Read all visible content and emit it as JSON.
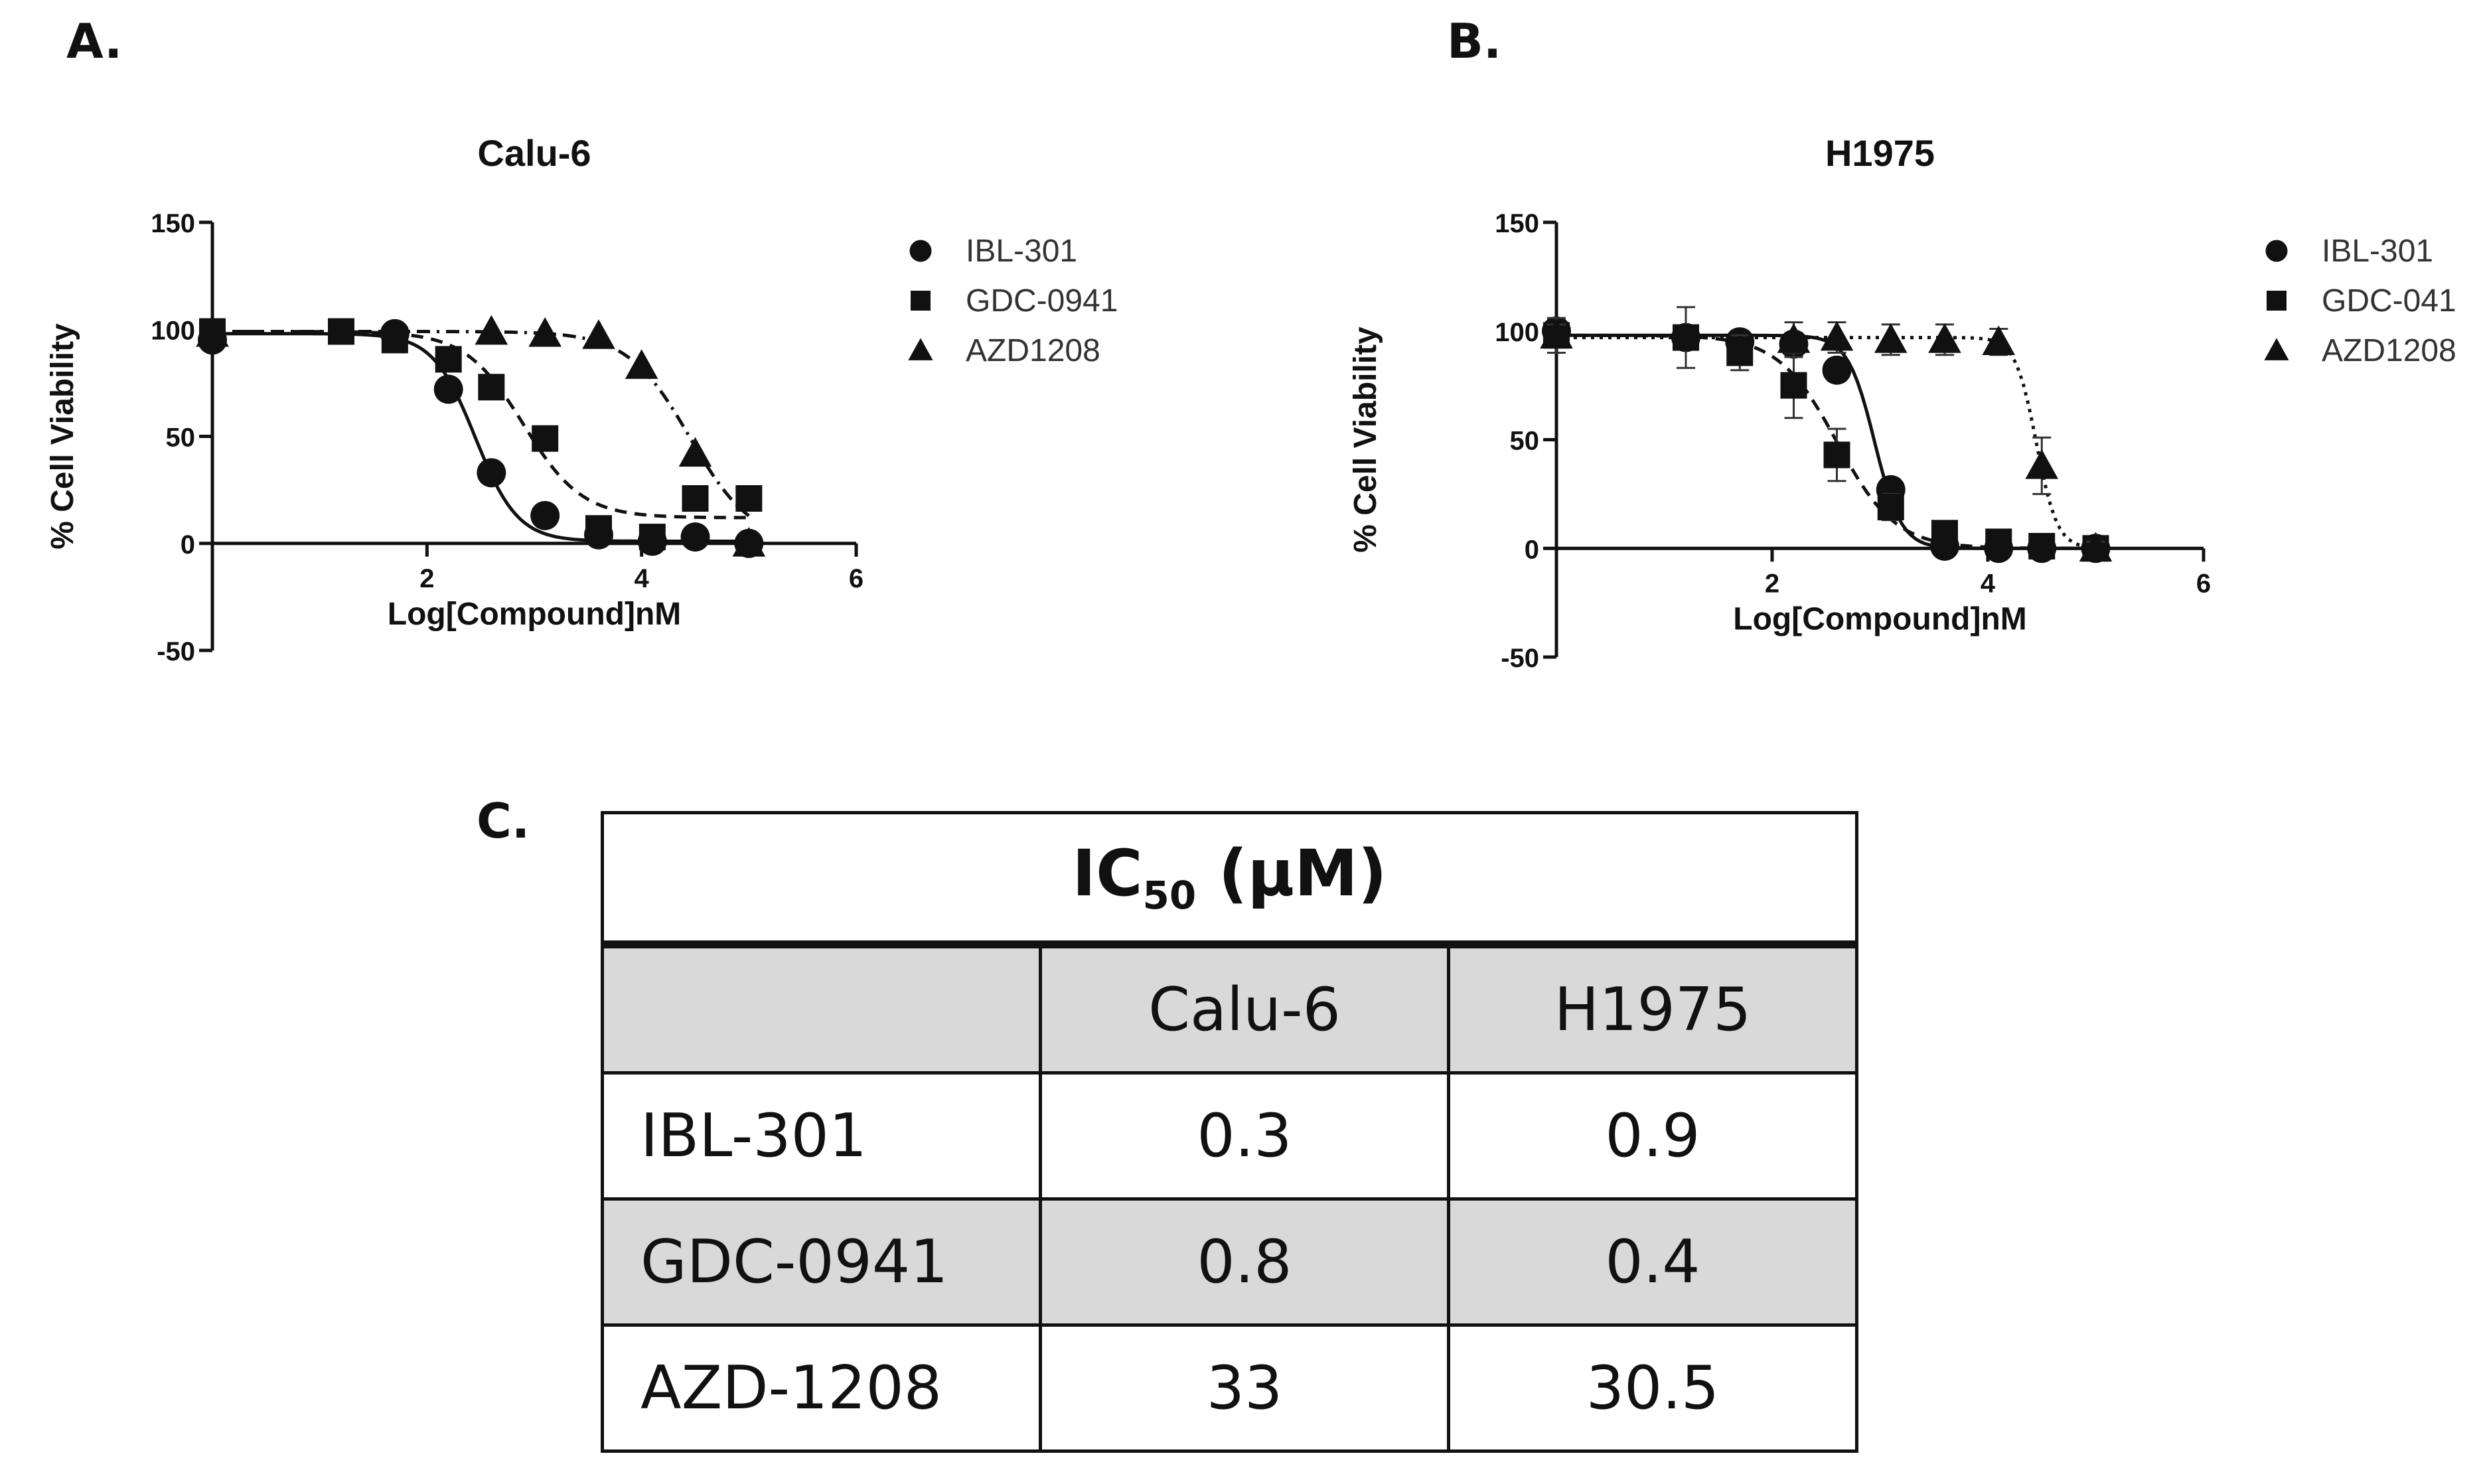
{
  "panels": {
    "a": "A.",
    "b": "B.",
    "c": "C."
  },
  "chart_data": [
    {
      "type": "scatter",
      "title": "Calu-6",
      "xlabel": "Log[Compound]nM",
      "ylabel": "% Cell Viability",
      "xlim": [
        0,
        6
      ],
      "ylim": [
        -50,
        150
      ],
      "xticks": [
        2,
        4,
        6
      ],
      "yticks": [
        -50,
        0,
        50,
        100,
        150
      ],
      "legend_position": "right",
      "series": [
        {
          "name": "IBL-301",
          "marker": "circle",
          "dash": "solid",
          "x": [
            0,
            1.7,
            2.2,
            2.6,
            3.1,
            3.6,
            4.1,
            4.5,
            5.0
          ],
          "y": [
            95,
            98,
            72,
            33,
            13,
            4,
            1,
            3,
            0
          ],
          "fit": {
            "top": 98,
            "bottom": 1,
            "logIC50": 2.45,
            "hill": 2.2
          }
        },
        {
          "name": "GDC-0941",
          "marker": "square",
          "dash": "dashed",
          "x": [
            0,
            1.2,
            1.7,
            2.2,
            2.6,
            3.1,
            3.6,
            4.1,
            4.5,
            5.0
          ],
          "y": [
            99,
            99,
            95,
            86,
            73,
            49,
            7,
            3,
            21,
            21
          ],
          "fit": {
            "top": 99,
            "bottom": 12,
            "logIC50": 2.9,
            "hill": 1.6
          }
        },
        {
          "name": "AZD1208",
          "marker": "triangle",
          "dash": "dashdot",
          "x": [
            0,
            2.6,
            3.1,
            3.6,
            4.0,
            4.5,
            5.0
          ],
          "y": [
            98,
            99,
            98,
            97,
            83,
            42,
            0
          ],
          "fit": {
            "top": 99,
            "bottom": 0,
            "logIC50": 4.45,
            "hill": 1.5
          }
        }
      ]
    },
    {
      "type": "scatter",
      "title": "H1975",
      "xlabel": "Log[Compound]nM",
      "ylabel": "% Cell Viability",
      "xlim": [
        0,
        6
      ],
      "ylim": [
        -50,
        150
      ],
      "xticks": [
        2,
        4,
        6
      ],
      "yticks": [
        -50,
        0,
        50,
        100,
        150
      ],
      "legend_position": "right",
      "series": [
        {
          "name": "IBL-301",
          "marker": "circle",
          "dash": "solid",
          "x": [
            0,
            1.2,
            1.7,
            2.2,
            2.6,
            3.1,
            3.6,
            4.1,
            4.5,
            5.0
          ],
          "y": [
            100,
            97,
            95,
            94,
            82,
            27,
            1,
            0,
            0,
            0
          ],
          "err": [
            5,
            5,
            5,
            5,
            5,
            5,
            2,
            2,
            2,
            2
          ],
          "fit": {
            "top": 98,
            "bottom": 0,
            "logIC50": 2.95,
            "hill": 3.5
          }
        },
        {
          "name": "GDC-041",
          "marker": "square",
          "dash": "dashed",
          "x": [
            0,
            1.2,
            1.7,
            2.2,
            2.6,
            3.1,
            3.6,
            4.1,
            4.5,
            5.0
          ],
          "y": [
            98,
            97,
            90,
            75,
            43,
            19,
            7,
            3,
            1,
            0
          ],
          "err": [
            8,
            14,
            8,
            15,
            12,
            6,
            3,
            2,
            2,
            2
          ],
          "fit": {
            "top": 98,
            "bottom": 0,
            "logIC50": 2.6,
            "hill": 1.6
          }
        },
        {
          "name": "AZD1208",
          "marker": "triangle",
          "dash": "dotted",
          "x": [
            0,
            2.2,
            2.6,
            3.1,
            3.6,
            4.1,
            4.5,
            5.0
          ],
          "y": [
            98,
            96,
            97,
            96,
            96,
            95,
            38,
            0
          ],
          "err": [
            5,
            8,
            7,
            7,
            7,
            6,
            13,
            3
          ],
          "fit": {
            "top": 97,
            "bottom": 0,
            "logIC50": 4.45,
            "hill": 4.5
          }
        }
      ]
    }
  ],
  "table": {
    "title_main": "IC",
    "title_sub": "50",
    "title_unit": " (µM)",
    "headers": [
      "",
      "Calu-6",
      "H1975"
    ],
    "rows": [
      [
        "IBL-301",
        "0.3",
        "0.9"
      ],
      [
        "GDC-0941",
        "0.8",
        "0.4"
      ],
      [
        "AZD-1208",
        "33",
        "30.5"
      ]
    ]
  }
}
